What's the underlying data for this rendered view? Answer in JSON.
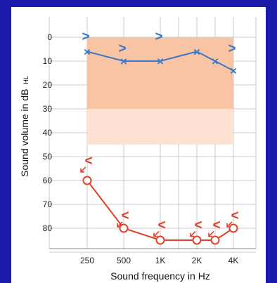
{
  "chart_data": {
    "type": "line",
    "title": "",
    "xlabel": "Sound frequency in Hz",
    "ylabel_main": "Sound volume in dB",
    "ylabel_sub": "HL",
    "ylim": [
      0,
      90
    ],
    "y_inverted": true,
    "grid": true,
    "x_tick_labels": [
      "250",
      "500",
      "1K",
      "2K",
      "4K"
    ],
    "y_ticks": [
      0,
      10,
      20,
      30,
      40,
      50,
      60,
      70,
      80
    ],
    "x_positions": [
      "250",
      "500",
      "1K",
      "1.5K",
      "2K",
      "3K",
      "4K"
    ],
    "normal_range": {
      "strong_from": 0,
      "strong_to": 30,
      "light_from": 30,
      "light_to": 45,
      "x_from": "250",
      "x_to": "4K"
    },
    "series": [
      {
        "symbol": "x",
        "values": [
          6,
          10,
          10,
          null,
          6,
          10,
          14
        ],
        "masked_values": [
          0,
          5,
          0,
          null,
          null,
          null,
          5
        ],
        "color": "#3a78c8"
      },
      {
        "symbol": "o",
        "values": [
          60,
          80,
          85,
          null,
          85,
          85,
          80
        ],
        "masked_values": [
          52,
          75,
          79,
          null,
          79,
          79,
          75
        ],
        "color": "#e0422c"
      }
    ]
  },
  "colors": {
    "background": "#1a1aa8",
    "normal_range_strong": "#f9c4a3",
    "normal_range_light": "#fde2d3",
    "grid": "#c8c8c8"
  }
}
